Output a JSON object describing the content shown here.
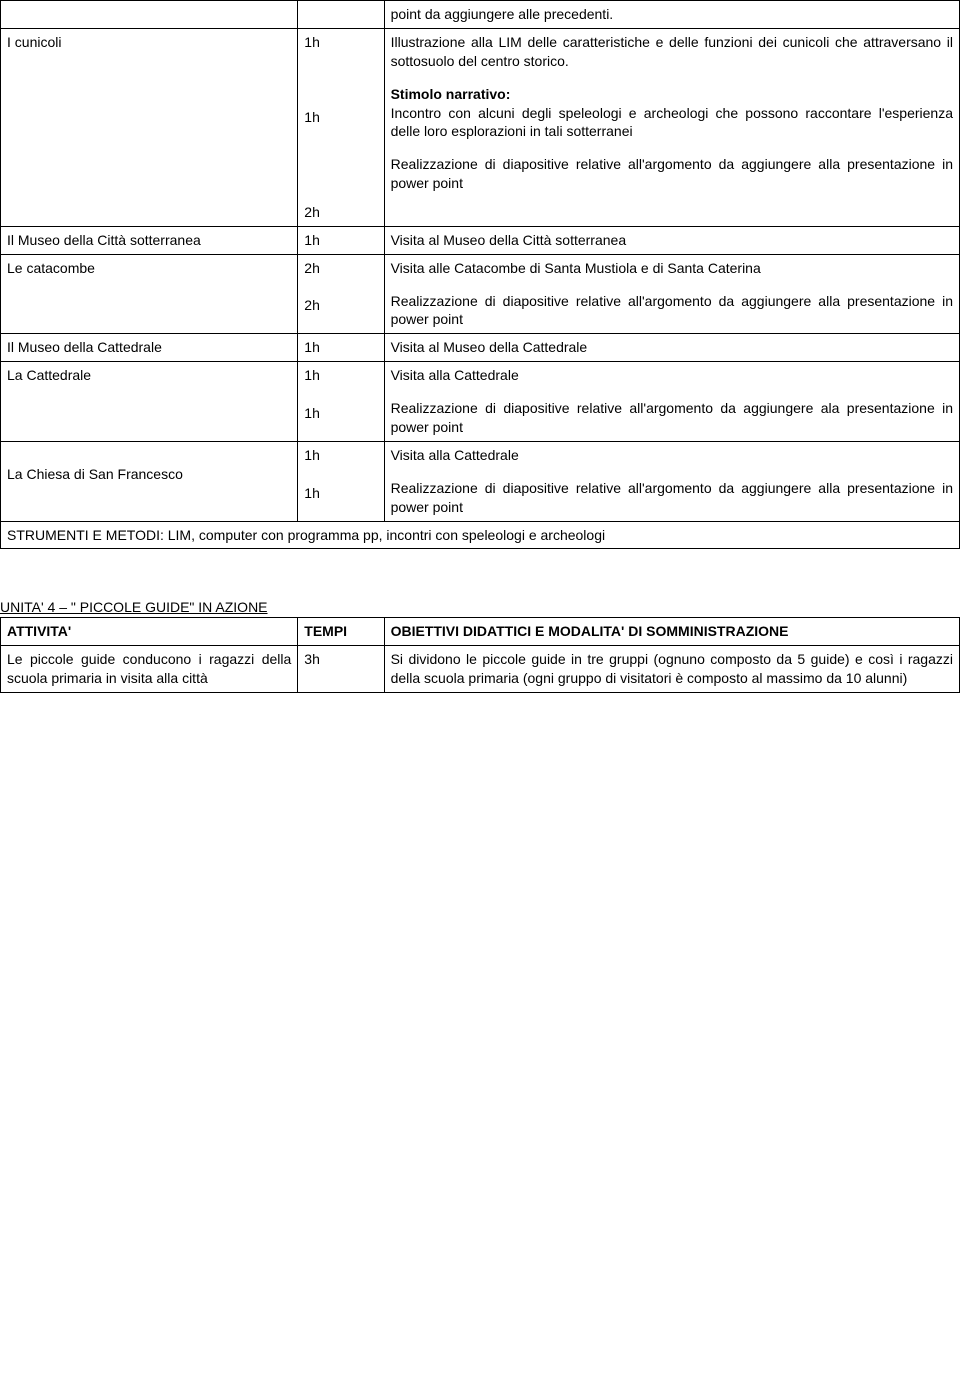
{
  "table1": {
    "rows": [
      {
        "c1": "",
        "c2": "",
        "c3_parts": [
          {
            "text": "point da aggiungere alle precedenti.",
            "bold": false
          }
        ]
      },
      {
        "c1": "I cunicoli",
        "c2_lines": [
          "1h",
          "",
          "",
          "",
          "1h",
          "",
          "",
          "",
          "",
          "2h"
        ],
        "c3_blocks": [
          {
            "text": "Illustrazione alla LIM delle caratteristiche e delle funzioni dei cunicoli che attraversano il sottosuolo del centro storico.",
            "bold": false,
            "justify": true
          },
          {
            "spacer": true
          },
          {
            "text": "Stimolo narrativo:",
            "bold": true
          },
          {
            "text": "Incontro con alcuni degli speleologi e archeologi che possono raccontare l'esperienza delle loro esplorazioni in tali sotterranei",
            "bold": false,
            "justify": true
          },
          {
            "spacer": true
          },
          {
            "text": "Realizzazione di diapositive relative all'argomento da aggiungere alla presentazione in power point",
            "bold": false,
            "justify": true
          }
        ]
      },
      {
        "c1": "Il Museo della Città sotterranea",
        "c1_justify": true,
        "c2": "1h",
        "c3_parts": [
          {
            "text": "Visita al Museo della Città sotterranea",
            "bold": false
          }
        ]
      },
      {
        "c1": "Le catacombe",
        "c2_lines": [
          "2h",
          "",
          "2h"
        ],
        "c3_blocks": [
          {
            "text": "Visita alle Catacombe di Santa Mustiola e di Santa Caterina",
            "bold": false
          },
          {
            "spacer": true
          },
          {
            "text": "Realizzazione di diapositive relative all'argomento da aggiungere alla presentazione in power point",
            "bold": false,
            "justify": true
          }
        ]
      },
      {
        "c1": "Il Museo della Cattedrale",
        "c1_justify": true,
        "c2": "1h",
        "c3_parts": [
          {
            "text": "Visita al Museo della Cattedrale",
            "bold": false
          }
        ]
      },
      {
        "c1": "La Cattedrale",
        "c2_lines": [
          "1h",
          "",
          "1h"
        ],
        "c3_blocks": [
          {
            "text": "Visita alla Cattedrale",
            "bold": false
          },
          {
            "spacer": true
          },
          {
            "text": "Realizzazione di diapositive relative all'argomento da aggiungere ala presentazione in power point",
            "bold": false,
            "justify": true
          }
        ]
      },
      {
        "c1": "La Chiesa di San Francesco",
        "c1_justify": true,
        "c1_leading_blank": true,
        "c2_lines": [
          "1h",
          "",
          "1h"
        ],
        "c3_blocks": [
          {
            "text": "Visita alla Cattedrale",
            "bold": false
          },
          {
            "spacer": true
          },
          {
            "text": "Realizzazione di diapositive relative all'argomento da aggiungere alla presentazione in power point",
            "bold": false,
            "justify": true
          }
        ]
      }
    ],
    "footer": "STRUMENTI E METODI: LIM, computer con programma pp, incontri con speleologi e archeologi"
  },
  "unit4": {
    "heading": "UNITA' 4 – \" PICCOLE GUIDE\" IN AZIONE",
    "header": {
      "c1": "ATTIVITA'",
      "c2": "TEMPI",
      "c3": "OBIETTIVI DIDATTICI E MODALITA' DI SOMMINISTRAZIONE"
    },
    "row": {
      "c1": "Le piccole guide conducono i ragazzi della scuola primaria in visita alla città",
      "c2": "3h",
      "c3": "Si dividono le piccole guide in tre gruppi (ognuno composto da 5 guide) e così i ragazzi della scuola primaria (ogni gruppo di visitatori è composto al massimo da 10 alunni)"
    }
  }
}
